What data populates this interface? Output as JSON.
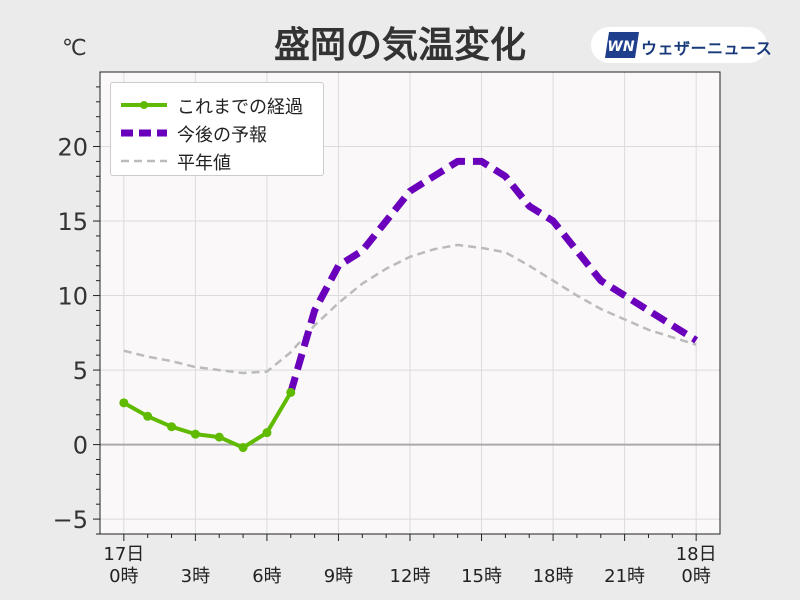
{
  "title": "盛岡の気温変化",
  "unit": "℃",
  "brand": {
    "name": "ウェザーニュース",
    "logo_text": "WN"
  },
  "colors": {
    "observed": "#5fba00",
    "forecast": "#6a00bb",
    "normal": "#bbbbbb",
    "background": "#ebebeb",
    "plot_background": "#faf8f9",
    "grid": "#dcdcdc"
  },
  "legend": {
    "observed": "これまでの経過",
    "forecast": "今後の予報",
    "normal": "平年値"
  },
  "chart_data": {
    "type": "line",
    "ylim": [
      -6,
      25
    ],
    "xlim": [
      -1,
      25
    ],
    "yticks": [
      {
        "value": -5,
        "label": "−5"
      },
      {
        "value": 0,
        "label": "0"
      },
      {
        "value": 5,
        "label": "5"
      },
      {
        "value": 10,
        "label": "10"
      },
      {
        "value": 15,
        "label": "15"
      },
      {
        "value": 20,
        "label": "20"
      }
    ],
    "xticks": [
      {
        "value": 0,
        "top": "17日",
        "bottom": "0時"
      },
      {
        "value": 3,
        "top": "",
        "bottom": "3時"
      },
      {
        "value": 6,
        "top": "",
        "bottom": "6時"
      },
      {
        "value": 9,
        "top": "",
        "bottom": "9時"
      },
      {
        "value": 12,
        "top": "",
        "bottom": "12時"
      },
      {
        "value": 15,
        "top": "",
        "bottom": "15時"
      },
      {
        "value": 18,
        "top": "",
        "bottom": "18時"
      },
      {
        "value": 21,
        "top": "",
        "bottom": "21時"
      },
      {
        "value": 24,
        "top": "18日",
        "bottom": "0時"
      }
    ],
    "grid": true,
    "legend_position": "top-left",
    "series": [
      {
        "name": "これまでの経過",
        "style": "solid-markers",
        "x": [
          0,
          1,
          2,
          3,
          4,
          5,
          6,
          7
        ],
        "y": [
          2.8,
          1.9,
          1.2,
          0.7,
          0.5,
          -0.2,
          0.8,
          3.5
        ]
      },
      {
        "name": "今後の予報",
        "style": "dashed-thick",
        "x": [
          7,
          8,
          9,
          10,
          11,
          12,
          13,
          14,
          15,
          16,
          17,
          18,
          19,
          20,
          21,
          22,
          23,
          24
        ],
        "y": [
          3.5,
          9,
          12,
          13,
          15,
          17,
          18,
          19,
          19,
          18,
          16,
          15,
          13,
          11,
          10,
          9,
          8,
          7
        ]
      },
      {
        "name": "平年値",
        "style": "dashed-thin",
        "x": [
          0,
          1,
          2,
          3,
          4,
          5,
          6,
          7,
          8,
          9,
          10,
          11,
          12,
          13,
          14,
          15,
          16,
          17,
          18,
          19,
          20,
          21,
          22,
          23,
          24
        ],
        "y": [
          6.3,
          5.9,
          5.6,
          5.2,
          5.0,
          4.8,
          4.9,
          6.2,
          8.0,
          9.5,
          10.8,
          11.8,
          12.6,
          13.1,
          13.4,
          13.2,
          12.9,
          12.0,
          11.0,
          10.0,
          9.1,
          8.4,
          7.7,
          7.2,
          6.7
        ]
      }
    ]
  }
}
